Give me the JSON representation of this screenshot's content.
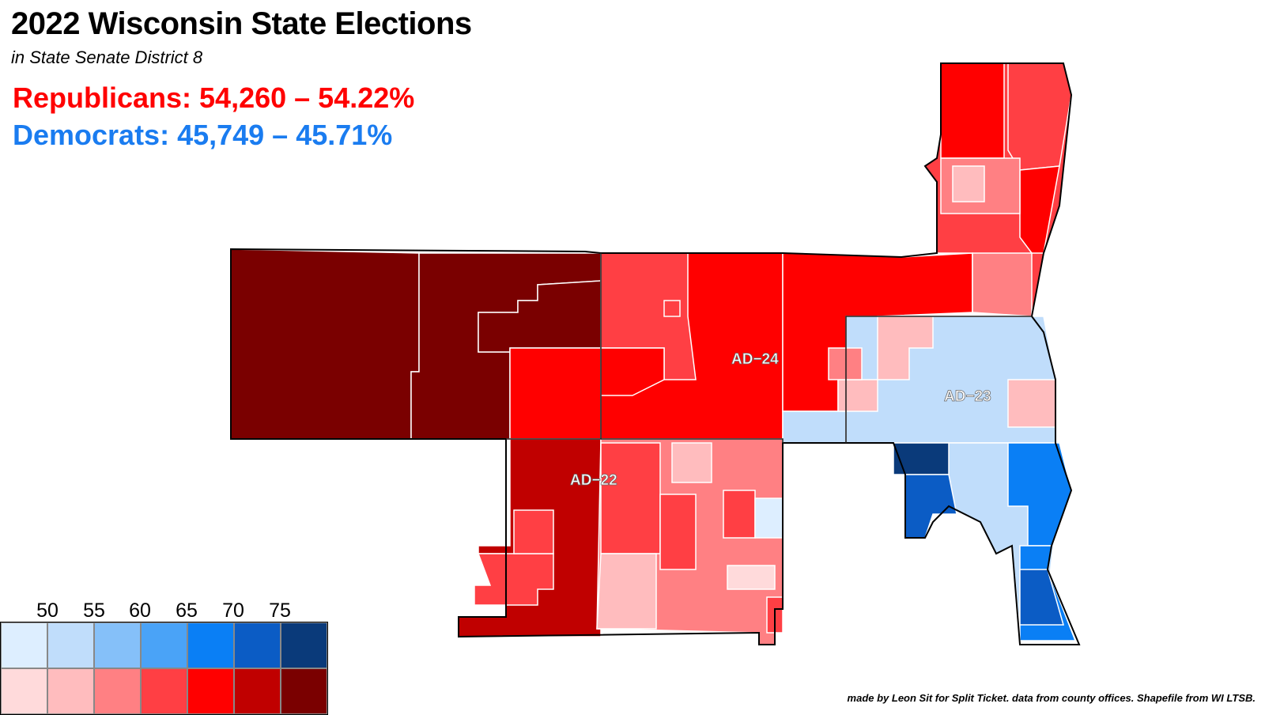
{
  "title": "2022 Wisconsin State Elections",
  "subtitle": "in State Senate District 8",
  "results": {
    "republicans": "Republicans: 54,260 – 54.22%",
    "democrats": "Democrats: 45,749 – 45.71%"
  },
  "district_labels": {
    "ad24": "AD−24",
    "ad23": "AD−23",
    "ad22": "AD−22"
  },
  "legend": {
    "ticks": [
      "50",
      "55",
      "60",
      "65",
      "70",
      "75"
    ],
    "dem_colors": [
      "#ddeeff",
      "#c0ddfb",
      "#85c0f9",
      "#4aa3f7",
      "#0a7ff5",
      "#0b5cc5",
      "#0a3a7a"
    ],
    "rep_colors": [
      "#ffdadb",
      "#ffbcbe",
      "#ff8083",
      "#ff3f44",
      "#ff0000",
      "#c00000",
      "#7a0000"
    ]
  },
  "credit": "made by Leon Sit for Split Ticket. data from county offices. Shapefile from WI LTSB.",
  "colors": {
    "rep_text": "#ff0000",
    "dem_text": "#1a7cf0"
  }
}
